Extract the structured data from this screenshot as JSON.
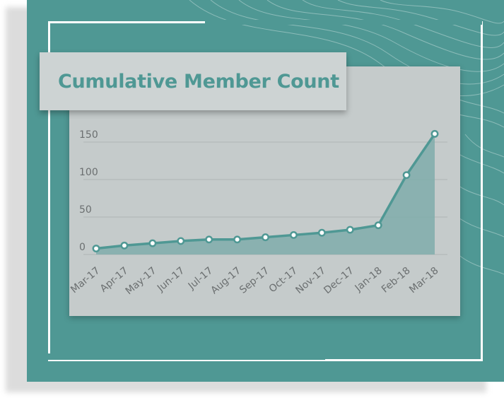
{
  "chart_data": {
    "type": "area",
    "title": "Cumulative Member Count",
    "xlabel": "",
    "ylabel": "",
    "categories": [
      "Mar-17",
      "Apr-17",
      "May-17",
      "Jun-17",
      "Jul-17",
      "Aug-17",
      "Sep-17",
      "Oct-17",
      "Nov-17",
      "Dec-17",
      "Jan-18",
      "Feb-18",
      "Mar-18"
    ],
    "series": [
      {
        "values": [
          8,
          12,
          15,
          18,
          20,
          20,
          23,
          26,
          29,
          33,
          39,
          106,
          161
        ]
      }
    ],
    "yticks": [
      "0",
      "50",
      "100",
      "150"
    ],
    "ytick_values": [
      0,
      50,
      100,
      150
    ],
    "ylim": [
      0,
      165
    ],
    "grid": true,
    "legend": "none",
    "colors": {
      "line": "#4f9894",
      "area": "#7fadab",
      "marker_fill": "#ffffff",
      "grid": "#aeb5b5",
      "panel": "#4f9894",
      "card": "#c5cbcb",
      "title": "#4f9894"
    }
  }
}
